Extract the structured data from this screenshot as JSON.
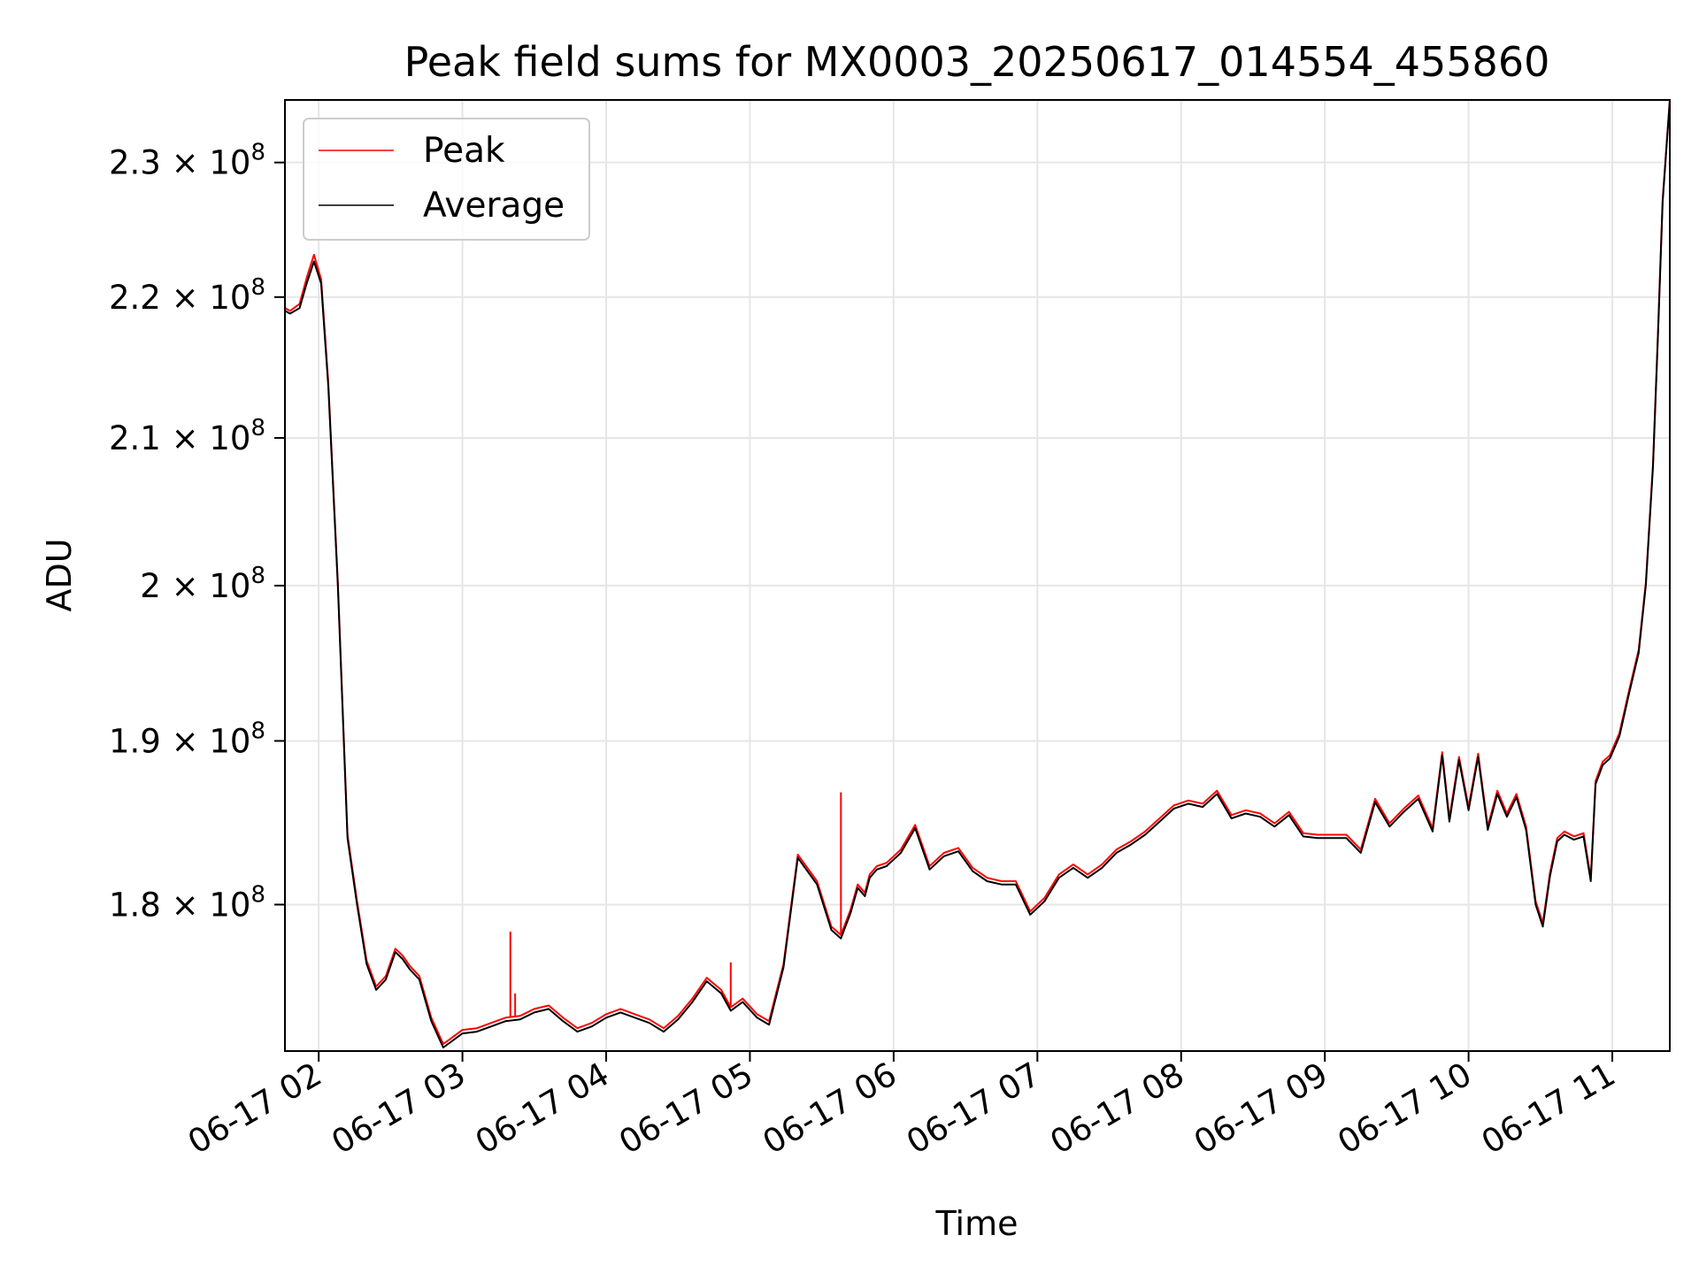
{
  "chart_data": {
    "type": "line",
    "title": "Peak field sums for MX0003_20250617_014554_455860",
    "xlabel": "Time",
    "ylabel": "ADU",
    "y_scale": "log",
    "xlim": [
      "06-17 01:45:54",
      "06-17 11:24"
    ],
    "ylim": [
      171500000,
      234800000
    ],
    "grid": true,
    "legend_position": "top-left",
    "x_ticks": [
      "06-17 02",
      "06-17 03",
      "06-17 04",
      "06-17 05",
      "06-17 06",
      "06-17 07",
      "06-17 08",
      "06-17 09",
      "06-17 10",
      "06-17 11"
    ],
    "x_tick_values": [
      "06-17 02:00",
      "06-17 03:00",
      "06-17 04:00",
      "06-17 05:00",
      "06-17 06:00",
      "06-17 07:00",
      "06-17 08:00",
      "06-17 09:00",
      "06-17 10:00",
      "06-17 11:00"
    ],
    "y_ticks": [
      {
        "value": 180000000,
        "mantissa": "1.8",
        "base": "10",
        "exp": "8"
      },
      {
        "value": 190000000,
        "mantissa": "1.9",
        "base": "10",
        "exp": "8"
      },
      {
        "value": 200000000,
        "mantissa": "2",
        "base": "10",
        "exp": "8"
      },
      {
        "value": 210000000,
        "mantissa": "2.1",
        "base": "10",
        "exp": "8"
      },
      {
        "value": 220000000,
        "mantissa": "2.2",
        "base": "10",
        "exp": "8"
      },
      {
        "value": 230000000,
        "mantissa": "2.3",
        "base": "10",
        "exp": "8"
      }
    ],
    "x": [
      "06-17 01:46",
      "06-17 01:48",
      "06-17 01:52",
      "06-17 01:55",
      "06-17 01:58",
      "06-17 02:01",
      "06-17 02:04",
      "06-17 02:08",
      "06-17 02:12",
      "06-17 02:16",
      "06-17 02:20",
      "06-17 02:24",
      "06-17 02:28",
      "06-17 02:32",
      "06-17 02:35",
      "06-17 02:38",
      "06-17 02:42",
      "06-17 02:47",
      "06-17 02:52",
      "06-17 02:55",
      "06-17 03:00",
      "06-17 03:06",
      "06-17 03:12",
      "06-17 03:18",
      "06-17 03:24",
      "06-17 03:30",
      "06-17 03:36",
      "06-17 03:42",
      "06-17 03:48",
      "06-17 03:54",
      "06-17 04:00",
      "06-17 04:06",
      "06-17 04:12",
      "06-17 04:18",
      "06-17 04:24",
      "06-17 04:30",
      "06-17 04:36",
      "06-17 04:42",
      "06-17 04:48",
      "06-17 04:52",
      "06-17 04:57",
      "06-17 05:03",
      "06-17 05:08",
      "06-17 05:14",
      "06-17 05:20",
      "06-17 05:28",
      "06-17 05:34",
      "06-17 05:38",
      "06-17 05:42",
      "06-17 05:45",
      "06-17 05:48",
      "06-17 05:50",
      "06-17 05:53",
      "06-17 05:57",
      "06-17 06:03",
      "06-17 06:09",
      "06-17 06:15",
      "06-17 06:21",
      "06-17 06:27",
      "06-17 06:33",
      "06-17 06:39",
      "06-17 06:45",
      "06-17 06:51",
      "06-17 06:57",
      "06-17 07:03",
      "06-17 07:09",
      "06-17 07:15",
      "06-17 07:21",
      "06-17 07:27",
      "06-17 07:33",
      "06-17 07:39",
      "06-17 07:45",
      "06-17 07:51",
      "06-17 07:57",
      "06-17 08:03",
      "06-17 08:09",
      "06-17 08:15",
      "06-17 08:21",
      "06-17 08:27",
      "06-17 08:33",
      "06-17 08:39",
      "06-17 08:45",
      "06-17 08:51",
      "06-17 08:57",
      "06-17 09:03",
      "06-17 09:09",
      "06-17 09:15",
      "06-17 09:21",
      "06-17 09:27",
      "06-17 09:33",
      "06-17 09:39",
      "06-17 09:45",
      "06-17 09:49",
      "06-17 09:52",
      "06-17 09:56",
      "06-17 10:00",
      "06-17 10:04",
      "06-17 10:08",
      "06-17 10:12",
      "06-17 10:16",
      "06-17 10:20",
      "06-17 10:24",
      "06-17 10:28",
      "06-17 10:31",
      "06-17 10:34",
      "06-17 10:37",
      "06-17 10:40",
      "06-17 10:44",
      "06-17 10:48",
      "06-17 10:51",
      "06-17 10:53",
      "06-17 10:56",
      "06-17 10:59",
      "06-17 11:03",
      "06-17 11:07",
      "06-17 11:11",
      "06-17 11:14",
      "06-17 11:17",
      "06-17 11:19",
      "06-17 11:21",
      "06-17 11:24"
    ],
    "series": [
      {
        "name": "Average",
        "color": "#000000",
        "values": [
          219000000,
          218800000,
          219200000,
          221000000,
          222600000,
          221000000,
          213600000,
          200000000,
          184000000,
          180000000,
          176500000,
          175000000,
          175600000,
          177200000,
          176800000,
          176200000,
          175600000,
          173200000,
          171700000,
          172000000,
          172500000,
          172600000,
          172900000,
          173200000,
          173300000,
          173700000,
          173900000,
          173200000,
          172600000,
          172900000,
          173400000,
          173700000,
          173400000,
          173100000,
          172600000,
          173300000,
          174300000,
          175500000,
          174800000,
          173800000,
          174300000,
          173400000,
          173000000,
          176300000,
          182800000,
          181200000,
          178500000,
          178000000,
          179500000,
          181000000,
          180500000,
          181600000,
          182100000,
          182300000,
          183100000,
          184600000,
          182100000,
          182900000,
          183200000,
          182000000,
          181400000,
          181200000,
          181200000,
          179400000,
          180200000,
          181600000,
          182200000,
          181600000,
          182200000,
          183100000,
          183600000,
          184200000,
          185000000,
          185800000,
          186100000,
          185900000,
          186700000,
          185200000,
          185500000,
          185300000,
          184700000,
          185400000,
          184100000,
          184000000,
          184000000,
          184000000,
          183100000,
          186200000,
          184700000,
          185600000,
          186400000,
          184400000,
          189100000,
          185000000,
          188800000,
          185700000,
          189000000,
          184500000,
          186700000,
          185300000,
          186500000,
          184500000,
          180000000,
          178700000,
          181700000,
          183800000,
          184200000,
          183900000,
          184100000,
          181400000,
          187300000,
          188500000,
          188900000,
          190300000,
          193000000,
          195600000,
          200000000,
          208000000,
          217000000,
          227000000,
          234800000
        ]
      },
      {
        "name": "Peak",
        "color": "#ff0000",
        "values": [
          219200000,
          219000000,
          219500000,
          221400000,
          223100000,
          221300000,
          213900000,
          200200000,
          184200000,
          180200000,
          176700000,
          175200000,
          175800000,
          177400000,
          177000000,
          176400000,
          175800000,
          173400000,
          171900000,
          172200000,
          172700000,
          172800000,
          173100000,
          173400000,
          173500000,
          173900000,
          174100000,
          173400000,
          172800000,
          173100000,
          173600000,
          173900000,
          173600000,
          173300000,
          172800000,
          173500000,
          174500000,
          175700000,
          175000000,
          174000000,
          174500000,
          173600000,
          173200000,
          176500000,
          183000000,
          181400000,
          178700000,
          178200000,
          179700000,
          181200000,
          180700000,
          181800000,
          182300000,
          182500000,
          183300000,
          184800000,
          182300000,
          183100000,
          183400000,
          182200000,
          181600000,
          181400000,
          181400000,
          179600000,
          180400000,
          181800000,
          182400000,
          181800000,
          182400000,
          183300000,
          183800000,
          184400000,
          185200000,
          186000000,
          186300000,
          186100000,
          186900000,
          185400000,
          185700000,
          185500000,
          184900000,
          185600000,
          184300000,
          184200000,
          184200000,
          184200000,
          183300000,
          186400000,
          184900000,
          185800000,
          186600000,
          184600000,
          189300000,
          185200000,
          189000000,
          185900000,
          189200000,
          184700000,
          186900000,
          185500000,
          186700000,
          184700000,
          180200000,
          178900000,
          181900000,
          184000000,
          184400000,
          184100000,
          184300000,
          181600000,
          187500000,
          188700000,
          189100000,
          190500000,
          193200000,
          195800000,
          200200000,
          208200000,
          217200000,
          227200000,
          234800000
        ]
      }
    ],
    "spikes": [
      {
        "series": "Peak",
        "x": "06-17 03:20",
        "value": 178400000
      },
      {
        "series": "Peak",
        "x": "06-17 03:22",
        "value": 174800000
      },
      {
        "series": "Peak",
        "x": "06-17 04:52",
        "value": 176600000
      },
      {
        "series": "Peak",
        "x": "06-17 05:38",
        "value": 186800000
      }
    ]
  }
}
